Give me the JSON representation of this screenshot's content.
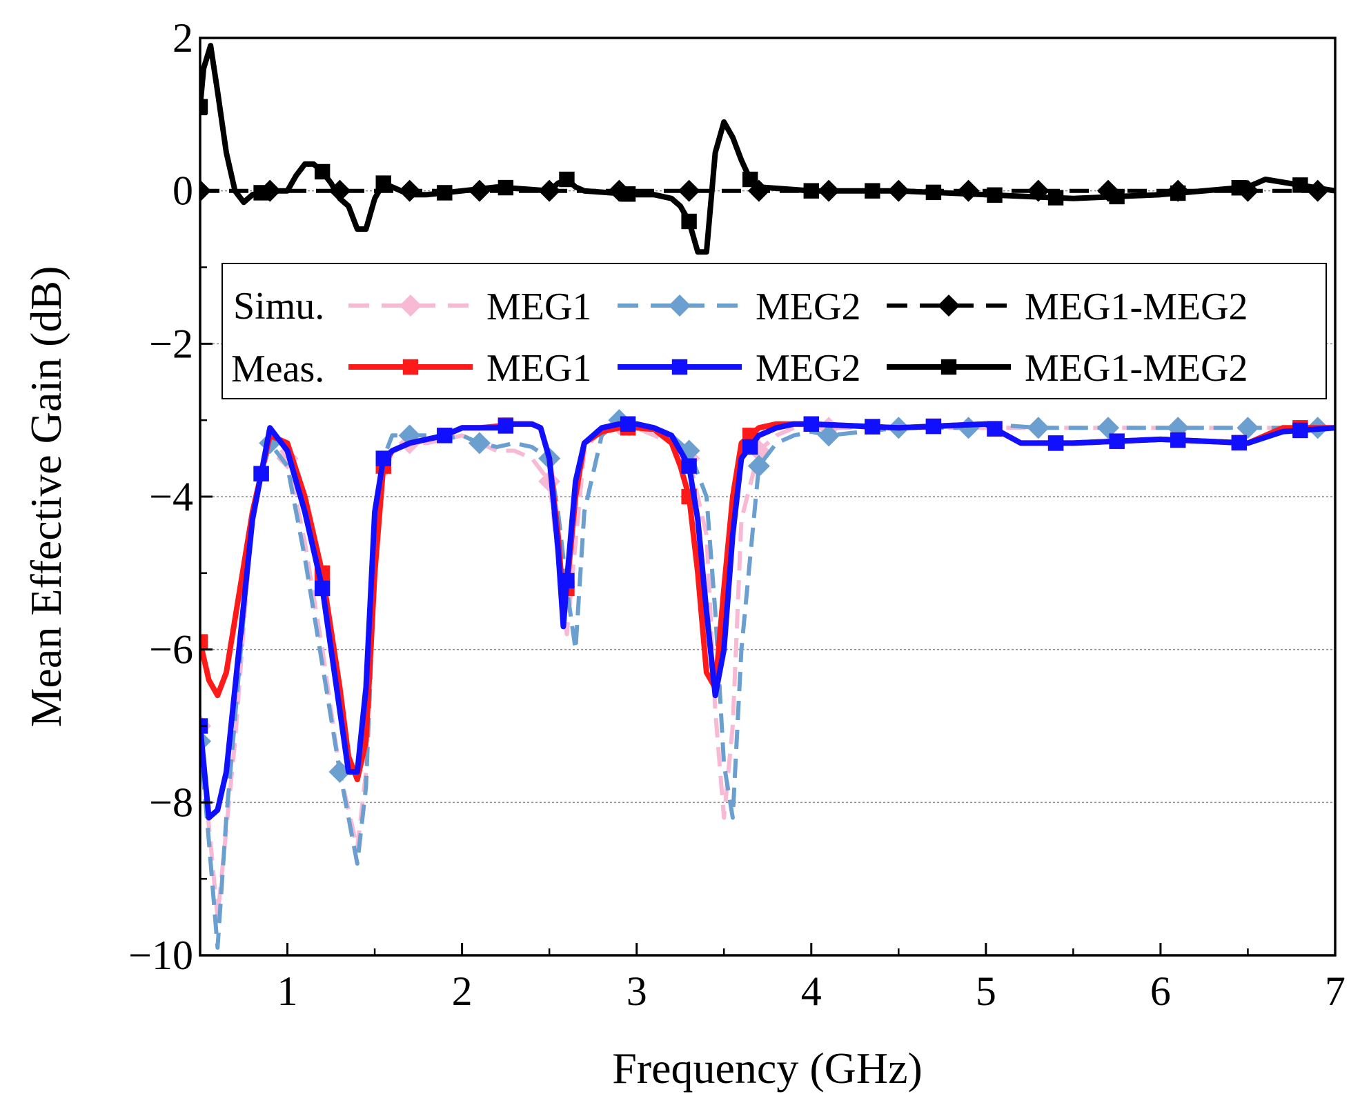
{
  "chart_data": {
    "type": "line",
    "title": "",
    "xlabel": "Frequency (GHz)",
    "ylabel": "Mean Effective Gain (dB)",
    "xlim": [
      0.5,
      7
    ],
    "ylim": [
      -10,
      2
    ],
    "x_ticks": [
      1,
      2,
      3,
      4,
      5,
      6,
      7
    ],
    "x_tick_labels": [
      "1",
      "2",
      "3",
      "4",
      "5",
      "6",
      "7"
    ],
    "y_ticks": [
      -10,
      -8,
      -6,
      -4,
      -2,
      0,
      2
    ],
    "y_tick_labels": [
      "−10",
      "−8",
      "−6",
      "−4",
      "−2",
      "0",
      "2"
    ],
    "grid": "horizontal dotted",
    "legend": {
      "placement": "upper-middle",
      "row_labels": [
        "Simu.",
        "Meas."
      ]
    },
    "series": [
      {
        "name": "MEG1",
        "group": "Simu.",
        "color": "#f7b9d3",
        "dash": "dashed",
        "marker": "diamond",
        "x": [
          0.5,
          0.55,
          0.6,
          0.7,
          0.8,
          0.9,
          1.0,
          1.1,
          1.2,
          1.3,
          1.4,
          1.45,
          1.5,
          1.6,
          1.7,
          1.8,
          1.9,
          2.0,
          2.1,
          2.2,
          2.3,
          2.4,
          2.5,
          2.55,
          2.6,
          2.65,
          2.7,
          2.8,
          2.9,
          3.0,
          3.1,
          3.2,
          3.3,
          3.4,
          3.45,
          3.5,
          3.55,
          3.6,
          3.7,
          3.8,
          3.9,
          4.0,
          4.5,
          5.0,
          5.5,
          6.0,
          6.5,
          7.0
        ],
        "y": [
          -7.0,
          -8.3,
          -9.5,
          -7.2,
          -4.2,
          -3.2,
          -3.5,
          -4.6,
          -6.0,
          -7.6,
          -8.6,
          -7.6,
          -4.2,
          -3.4,
          -3.3,
          -3.3,
          -3.25,
          -3.2,
          -3.3,
          -3.4,
          -3.4,
          -3.5,
          -3.8,
          -4.8,
          -5.8,
          -4.6,
          -3.4,
          -3.1,
          -3.05,
          -3.1,
          -3.2,
          -3.3,
          -3.5,
          -4.5,
          -6.8,
          -8.2,
          -7.0,
          -4.3,
          -3.4,
          -3.2,
          -3.1,
          -3.1,
          -3.1,
          -3.1,
          -3.1,
          -3.1,
          -3.1,
          -3.1
        ],
        "marker_x": [
          0.5,
          1.0,
          1.3,
          1.7,
          2.1,
          2.5,
          2.9,
          3.3,
          3.7,
          4.1,
          4.5,
          4.9,
          5.3,
          5.7,
          6.1,
          6.5,
          6.9
        ]
      },
      {
        "name": "MEG2",
        "group": "Simu.",
        "color": "#6a9fd0",
        "dash": "dashed",
        "marker": "diamond",
        "x": [
          0.5,
          0.55,
          0.6,
          0.65,
          0.7,
          0.8,
          0.9,
          1.0,
          1.1,
          1.2,
          1.3,
          1.35,
          1.4,
          1.45,
          1.5,
          1.55,
          1.6,
          1.7,
          1.8,
          1.9,
          2.0,
          2.1,
          2.2,
          2.3,
          2.4,
          2.5,
          2.55,
          2.6,
          2.65,
          2.7,
          2.8,
          2.9,
          3.0,
          3.1,
          3.2,
          3.3,
          3.4,
          3.45,
          3.5,
          3.55,
          3.6,
          3.7,
          3.8,
          3.9,
          4.0,
          4.1,
          4.5,
          4.9,
          5.0,
          5.3,
          5.7,
          6.1,
          6.5,
          6.9,
          7.0
        ],
        "y": [
          -7.2,
          -8.5,
          -9.9,
          -8.2,
          -6.9,
          -4.2,
          -3.3,
          -3.6,
          -4.8,
          -6.2,
          -7.6,
          -8.2,
          -8.8,
          -7.8,
          -5.0,
          -3.5,
          -3.2,
          -3.2,
          -3.2,
          -3.25,
          -3.2,
          -3.3,
          -3.35,
          -3.3,
          -3.35,
          -3.5,
          -4.2,
          -5.2,
          -6.0,
          -4.2,
          -3.2,
          -3.0,
          -3.1,
          -3.1,
          -3.2,
          -3.4,
          -4.0,
          -5.5,
          -7.5,
          -8.2,
          -6.0,
          -3.6,
          -3.3,
          -3.2,
          -3.15,
          -3.2,
          -3.1,
          -3.1,
          -3.05,
          -3.1,
          -3.1,
          -3.1,
          -3.1,
          -3.1,
          -3.1
        ],
        "marker_x": [
          0.5,
          0.9,
          1.3,
          1.7,
          2.1,
          2.5,
          2.9,
          3.3,
          3.7,
          4.1,
          4.5,
          4.9,
          5.3,
          5.7,
          6.1,
          6.5,
          6.9
        ]
      },
      {
        "name": "MEG1-MEG2",
        "group": "Simu.",
        "color": "#000000",
        "dash": "dashed",
        "marker": "diamond",
        "x": [
          0.5,
          1.0,
          1.5,
          2.0,
          2.5,
          3.0,
          3.5,
          4.0,
          4.5,
          5.0,
          5.5,
          6.0,
          6.5,
          7.0
        ],
        "y": [
          0,
          0,
          0,
          0,
          0,
          0,
          0,
          0,
          0,
          0,
          0,
          0,
          0,
          0
        ],
        "marker_x": [
          0.5,
          0.9,
          1.3,
          1.7,
          2.1,
          2.5,
          2.9,
          3.3,
          3.7,
          4.1,
          4.5,
          4.9,
          5.3,
          5.7,
          6.1,
          6.5,
          6.9
        ]
      },
      {
        "name": "MEG1",
        "group": "Meas.",
        "color": "#ff1a1a",
        "dash": "solid",
        "marker": "square",
        "x": [
          0.5,
          0.55,
          0.6,
          0.65,
          0.7,
          0.8,
          0.9,
          1.0,
          1.1,
          1.2,
          1.3,
          1.35,
          1.4,
          1.45,
          1.5,
          1.55,
          1.6,
          1.7,
          1.8,
          1.9,
          2.0,
          2.1,
          2.2,
          2.3,
          2.4,
          2.45,
          2.5,
          2.55,
          2.58,
          2.6,
          2.65,
          2.7,
          2.8,
          2.9,
          3.0,
          3.1,
          3.2,
          3.25,
          3.3,
          3.35,
          3.4,
          3.45,
          3.5,
          3.55,
          3.6,
          3.7,
          3.8,
          3.9,
          4.0,
          4.5,
          5.0,
          5.2,
          5.5,
          6.0,
          6.5,
          6.7,
          7.0
        ],
        "y": [
          -5.9,
          -6.4,
          -6.6,
          -6.3,
          -5.6,
          -4.2,
          -3.2,
          -3.3,
          -4.0,
          -5.0,
          -6.5,
          -7.4,
          -7.7,
          -7.2,
          -5.0,
          -3.6,
          -3.4,
          -3.3,
          -3.25,
          -3.2,
          -3.1,
          -3.1,
          -3.08,
          -3.05,
          -3.05,
          -3.1,
          -3.5,
          -4.5,
          -5.4,
          -5.2,
          -4.0,
          -3.3,
          -3.15,
          -3.1,
          -3.1,
          -3.12,
          -3.3,
          -3.6,
          -4.0,
          -5.0,
          -6.3,
          -6.5,
          -5.2,
          -4.0,
          -3.3,
          -3.1,
          -3.05,
          -3.05,
          -3.05,
          -3.1,
          -3.05,
          -3.3,
          -3.3,
          -3.25,
          -3.3,
          -3.1,
          -3.1
        ],
        "marker_x": [
          0.5,
          0.85,
          1.2,
          1.55,
          1.9,
          2.25,
          2.6,
          2.95,
          3.3,
          3.65,
          4.0,
          4.35,
          4.7,
          5.05,
          5.4,
          5.75,
          6.1,
          6.45,
          6.8
        ]
      },
      {
        "name": "MEG2",
        "group": "Meas.",
        "color": "#1010ff",
        "dash": "solid",
        "marker": "square",
        "x": [
          0.5,
          0.55,
          0.6,
          0.65,
          0.7,
          0.8,
          0.9,
          1.0,
          1.1,
          1.2,
          1.3,
          1.35,
          1.4,
          1.45,
          1.5,
          1.55,
          1.6,
          1.7,
          1.8,
          1.9,
          2.0,
          2.1,
          2.2,
          2.3,
          2.4,
          2.45,
          2.5,
          2.55,
          2.58,
          2.6,
          2.65,
          2.7,
          2.8,
          2.9,
          3.0,
          3.1,
          3.2,
          3.25,
          3.3,
          3.35,
          3.4,
          3.45,
          3.5,
          3.55,
          3.6,
          3.7,
          3.8,
          3.9,
          4.0,
          4.5,
          5.0,
          5.2,
          5.5,
          6.0,
          6.5,
          6.7,
          7.0
        ],
        "y": [
          -7.0,
          -8.2,
          -8.1,
          -7.6,
          -6.5,
          -4.3,
          -3.1,
          -3.4,
          -4.2,
          -5.2,
          -6.8,
          -7.6,
          -7.6,
          -6.5,
          -4.2,
          -3.5,
          -3.4,
          -3.3,
          -3.25,
          -3.2,
          -3.1,
          -3.1,
          -3.1,
          -3.05,
          -3.05,
          -3.1,
          -3.5,
          -4.7,
          -5.7,
          -5.1,
          -3.8,
          -3.3,
          -3.1,
          -3.05,
          -3.05,
          -3.1,
          -3.2,
          -3.4,
          -3.6,
          -4.3,
          -5.5,
          -6.6,
          -6.0,
          -4.5,
          -3.5,
          -3.2,
          -3.1,
          -3.05,
          -3.05,
          -3.1,
          -3.05,
          -3.3,
          -3.3,
          -3.25,
          -3.3,
          -3.15,
          -3.1
        ],
        "marker_x": [
          0.5,
          0.85,
          1.2,
          1.55,
          1.9,
          2.25,
          2.6,
          2.95,
          3.3,
          3.65,
          4.0,
          4.35,
          4.7,
          5.05,
          5.4,
          5.75,
          6.1,
          6.45,
          6.8
        ]
      },
      {
        "name": "MEG1-MEG2",
        "group": "Meas.",
        "color": "#000000",
        "dash": "solid",
        "marker": "square",
        "x": [
          0.5,
          0.52,
          0.56,
          0.6,
          0.65,
          0.7,
          0.75,
          0.8,
          0.9,
          1.0,
          1.05,
          1.1,
          1.15,
          1.2,
          1.25,
          1.3,
          1.35,
          1.4,
          1.45,
          1.5,
          1.55,
          1.6,
          1.7,
          1.8,
          2.0,
          2.2,
          2.5,
          2.55,
          2.6,
          2.65,
          2.7,
          3.0,
          3.1,
          3.2,
          3.25,
          3.3,
          3.35,
          3.4,
          3.45,
          3.5,
          3.55,
          3.6,
          3.65,
          3.7,
          4.0,
          4.5,
          5.0,
          5.5,
          6.0,
          6.5,
          6.6,
          7.0
        ],
        "y": [
          1.1,
          1.6,
          1.9,
          1.3,
          0.5,
          0.0,
          -0.15,
          -0.05,
          0.0,
          0.0,
          0.2,
          0.35,
          0.35,
          0.25,
          0.1,
          -0.1,
          -0.2,
          -0.5,
          -0.5,
          -0.1,
          0.1,
          0.05,
          -0.05,
          -0.05,
          0.0,
          0.05,
          0.0,
          0.1,
          0.15,
          0.05,
          0.0,
          -0.05,
          -0.05,
          -0.1,
          -0.2,
          -0.4,
          -0.8,
          -0.8,
          0.5,
          0.9,
          0.7,
          0.4,
          0.15,
          0.05,
          0.0,
          0.0,
          -0.05,
          -0.1,
          -0.05,
          0.05,
          0.15,
          0.0
        ],
        "marker_x": [
          0.5,
          0.85,
          1.2,
          1.55,
          1.9,
          2.25,
          2.6,
          2.95,
          3.3,
          3.65,
          4.0,
          4.35,
          4.7,
          5.05,
          5.4,
          5.75,
          6.1,
          6.45,
          6.8
        ]
      }
    ]
  }
}
